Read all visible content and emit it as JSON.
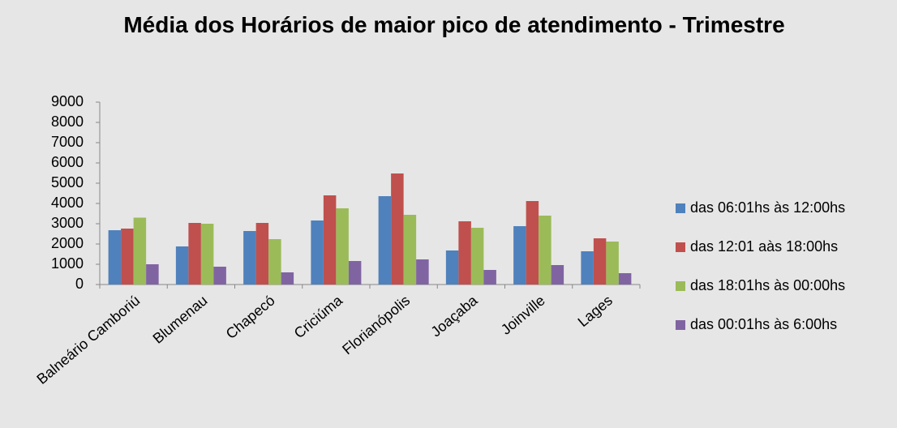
{
  "chart_data": {
    "type": "bar",
    "title": "Média dos Horários de maior pico de atendimento - Trimestre",
    "categories": [
      "Balneário Camboriú",
      "Blumenau",
      "Chapecó",
      "Criciúma",
      "Florianópolis",
      "Joaçaba",
      "Joinville",
      "Lages"
    ],
    "series": [
      {
        "name": "das 06:01hs às 12:00hs",
        "color": "#4f81bd",
        "values": [
          2680,
          1880,
          2640,
          3160,
          4360,
          1680,
          2880,
          1640
        ]
      },
      {
        "name": "das 12:01 aàs 18:00hs",
        "color": "#c0504d",
        "values": [
          2760,
          3040,
          3040,
          4400,
          5480,
          3120,
          4120,
          2280
        ]
      },
      {
        "name": "das 18:01hs às 00:00hs",
        "color": "#9bbb59",
        "values": [
          3300,
          3000,
          2240,
          3760,
          3440,
          2800,
          3400,
          2120
        ]
      },
      {
        "name": "das 00:01hs às 6:00hs",
        "color": "#8064a2",
        "values": [
          1000,
          880,
          600,
          1160,
          1240,
          720,
          960,
          560
        ]
      }
    ],
    "ylim": [
      0,
      9000
    ],
    "yticks": [
      0,
      1000,
      2000,
      3000,
      4000,
      5000,
      6000,
      7000,
      8000,
      9000
    ],
    "grid": false,
    "legend": "right"
  }
}
